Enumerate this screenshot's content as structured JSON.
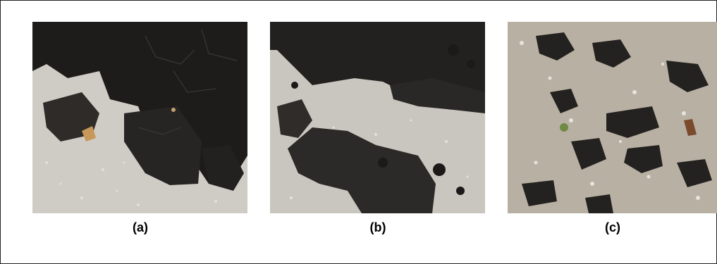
{
  "figure": {
    "panels": [
      {
        "id": "a",
        "caption": "(a)",
        "description_icon": "lava-rock-large-slabs"
      },
      {
        "id": "b",
        "caption": "(b)",
        "description_icon": "lava-rock-pahoehoe-flow"
      },
      {
        "id": "c",
        "caption": "(c)",
        "description_icon": "lava-rock-scattered-clasts"
      }
    ]
  }
}
